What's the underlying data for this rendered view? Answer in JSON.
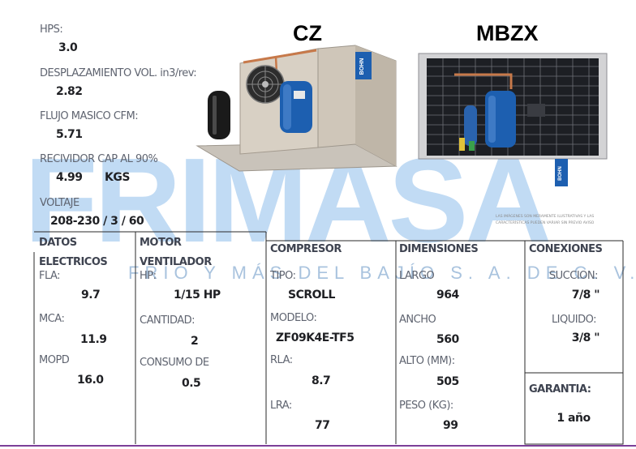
{
  "colors": {
    "watermark": "#3f8fdc",
    "watermark_sub": "#9ab9d8",
    "rule": "#7c3f98",
    "compressor_blue": "#1d5fb0",
    "housing": "#d8d0c4"
  },
  "specs": {
    "hps_label": "HPS:",
    "hps_value": "3.0",
    "displacement_label": "DESPLAZAMIENTO VOL. in3/rev:",
    "displacement_value": "2.82",
    "mass_flow_label": "FLUJO MASICO CFM:",
    "mass_flow_value": "5.71",
    "receiver_label": "RECIVIDOR CAP AL 90%",
    "receiver_value": "4.99",
    "receiver_unit": "KGS",
    "voltage_label": "VOLTAJE",
    "voltage_value": "208-230 / 3 /  60"
  },
  "products": {
    "left_title": "CZ",
    "right_title": "MBZX",
    "left_badge": "BOHN",
    "right_badge": "BOHN",
    "fine_print_1": "LAS IMÁGENES SON MERAMENTE ILUSTRATIVAS Y LAS",
    "fine_print_2": "CARACTERÍSTICAS PUEDEN VARIAR SIN PREVIO AVISO"
  },
  "watermark": {
    "brand": "FRIMASA",
    "subtitle": "FRÍO Y MÁS DEL BAJÍO S. A. DE C. V."
  },
  "table": {
    "electrical": {
      "header_1": "DATOS",
      "header_2": "ELECTRICOS",
      "rows": [
        {
          "label": "FLA:",
          "value": "9.7"
        },
        {
          "label": "MCA:",
          "value": "11.9"
        },
        {
          "label": "MOPD",
          "value": "16.0"
        }
      ]
    },
    "fan_motor": {
      "header_1": "MOTOR",
      "header_2": "VENTILADOR",
      "rows": [
        {
          "label": "HP:",
          "value": "1/15 HP"
        },
        {
          "label": "CANTIDAD:",
          "value": "2"
        },
        {
          "label": "CONSUMO DE",
          "value": "0.5"
        }
      ]
    },
    "compressor": {
      "header": "COMPRESOR",
      "rows": [
        {
          "label": "TIPO:",
          "value": "SCROLL"
        },
        {
          "label": "MODELO:",
          "value": "ZF09K4E-TF5"
        },
        {
          "label": "RLA:",
          "value": "8.7"
        },
        {
          "label": "LRA:",
          "value": "77"
        }
      ]
    },
    "dimensions": {
      "header": "DIMENSIONES",
      "rows": [
        {
          "label": "LARGO",
          "value": "964"
        },
        {
          "label": "ANCHO",
          "value": "560"
        },
        {
          "label": "ALTO (MM):",
          "value": "505"
        },
        {
          "label": "PESO (KG):",
          "value": "99"
        }
      ]
    },
    "connections": {
      "header": "CONEXIONES",
      "rows": [
        {
          "label": "SUCCION:",
          "value": "7/8 \""
        },
        {
          "label": "LIQUIDO:",
          "value": "3/8 \""
        }
      ]
    },
    "warranty": {
      "header": "GARANTIA:",
      "value": "1 año"
    }
  }
}
